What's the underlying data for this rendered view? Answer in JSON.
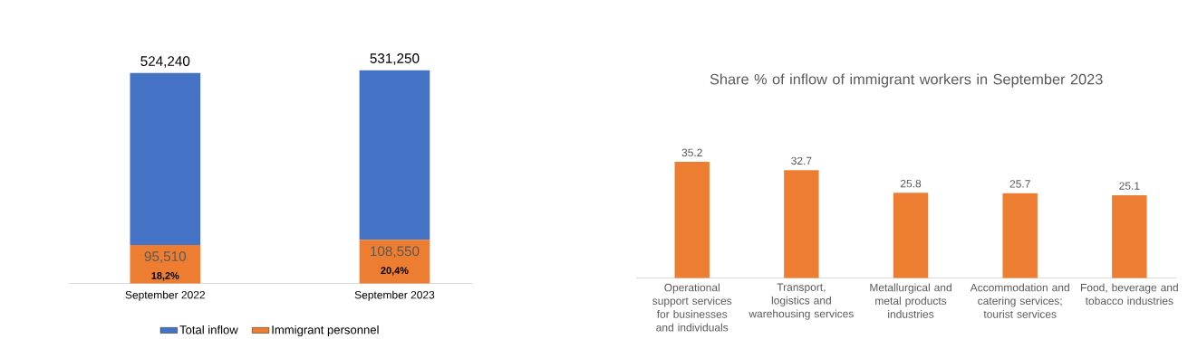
{
  "chart_data": [
    {
      "type": "bar",
      "stacked": true,
      "categories": [
        "September 2022",
        "September 2023"
      ],
      "series": [
        {
          "name": "Immigrant personnel",
          "color": "#ed7d31",
          "values": [
            95510,
            108550
          ],
          "value_labels": [
            "95,510",
            "108,550"
          ]
        },
        {
          "name": "Total inflow",
          "color": "#4472c4",
          "values": [
            428730,
            422700
          ]
        }
      ],
      "totals": [
        "524,240",
        "531,250"
      ],
      "annotations": [
        "18,2%",
        "20,4%"
      ],
      "legend": "bottom"
    },
    {
      "type": "bar",
      "title": "Share % of inflow of immigrant workers in September 2023",
      "categories": [
        "Operational support services for businesses and individuals",
        "Transport, logistics and warehousing services",
        "Metallurgical and metal products industries",
        "Accommodation and catering services; tourist services",
        "Food, beverage and tobacco industries"
      ],
      "values": [
        35.2,
        32.7,
        25.8,
        25.7,
        25.1
      ],
      "color": "#ed7d31",
      "data_labels": true
    }
  ]
}
